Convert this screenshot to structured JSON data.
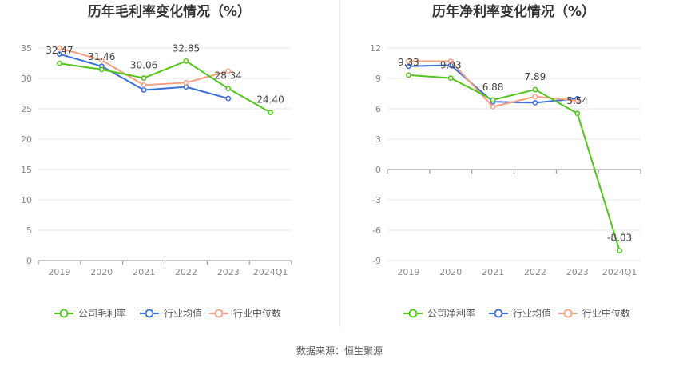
{
  "chart_data": [
    {
      "type": "line",
      "title": "历年毛利率变化情况（%）",
      "categories": [
        "2019",
        "2020",
        "2021",
        "2022",
        "2023",
        "2024Q1"
      ],
      "ylim": [
        0,
        35
      ],
      "yticks": [
        0,
        5,
        10,
        15,
        20,
        25,
        30,
        35
      ],
      "grid": true,
      "legend_position": "bottom",
      "series": [
        {
          "name": "公司毛利率",
          "color": "#52c41a",
          "values": [
            32.47,
            31.46,
            30.06,
            32.85,
            28.34,
            24.4
          ],
          "labels": [
            "32.47",
            "31.46",
            "30.06",
            "32.85",
            "28.34",
            "24.40"
          ]
        },
        {
          "name": "行业均值",
          "color": "#3d6fd8",
          "values": [
            34.0,
            32.0,
            28.1,
            28.6,
            26.7,
            null
          ]
        },
        {
          "name": "行业中位数",
          "color": "#f4a083",
          "values": [
            35.0,
            33.0,
            28.9,
            29.3,
            31.2,
            null
          ]
        }
      ]
    },
    {
      "type": "line",
      "title": "历年净利率变化情况（%）",
      "categories": [
        "2019",
        "2020",
        "2021",
        "2022",
        "2023",
        "2024Q1"
      ],
      "ylim": [
        -9,
        12
      ],
      "yticks": [
        -9,
        -6,
        -3,
        0,
        3,
        6,
        9,
        12
      ],
      "grid": true,
      "legend_position": "bottom",
      "series": [
        {
          "name": "公司净利率",
          "color": "#52c41a",
          "values": [
            9.33,
            9.03,
            6.88,
            7.89,
            5.54,
            -8.03
          ],
          "labels": [
            "9.33",
            "9.03",
            "6.88",
            "7.89",
            "5.54",
            "-8.03"
          ]
        },
        {
          "name": "行业均值",
          "color": "#3d6fd8",
          "values": [
            10.2,
            10.3,
            6.7,
            6.6,
            7.0,
            null
          ]
        },
        {
          "name": "行业中位数",
          "color": "#f4a083",
          "values": [
            10.7,
            10.7,
            6.2,
            7.2,
            6.8,
            null
          ]
        }
      ]
    }
  ],
  "source": "数据来源：恒生聚源"
}
